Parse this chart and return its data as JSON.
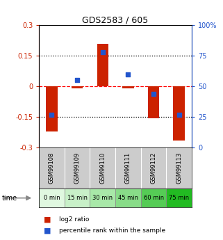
{
  "title": "GDS2583 / 605",
  "samples": [
    "GSM99108",
    "GSM99109",
    "GSM99110",
    "GSM99111",
    "GSM99112",
    "GSM99113"
  ],
  "time_labels": [
    "0 min",
    "15 min",
    "30 min",
    "45 min",
    "60 min",
    "75 min"
  ],
  "log2_ratio": [
    -0.22,
    -0.01,
    0.21,
    -0.01,
    -0.155,
    -0.265
  ],
  "percentile_rank": [
    27,
    55,
    78,
    60,
    44,
    27
  ],
  "bar_color": "#cc2200",
  "dot_color": "#2255cc",
  "ylim_left": [
    -0.3,
    0.3
  ],
  "ylim_right": [
    0,
    100
  ],
  "yticks_left": [
    -0.3,
    -0.15,
    0,
    0.15,
    0.3
  ],
  "yticks_right": [
    0,
    25,
    50,
    75,
    100
  ],
  "hline_y": [
    0.15,
    0.0,
    -0.15
  ],
  "hline_styles": [
    "dotted",
    "dashed",
    "dotted"
  ],
  "hline_colors": [
    "black",
    "red",
    "black"
  ],
  "bg_color": "#ffffff",
  "plot_area_color": "#ffffff",
  "time_colors": [
    "#e0f8e0",
    "#c8f0c8",
    "#a8e8a8",
    "#88dc88",
    "#55cc55",
    "#22bb22"
  ],
  "sample_bg_color": "#cccccc",
  "bar_width": 0.45,
  "legend_log2": "log2 ratio",
  "legend_pct": "percentile rank within the sample",
  "figsize": [
    3.21,
    3.45
  ],
  "dpi": 100
}
